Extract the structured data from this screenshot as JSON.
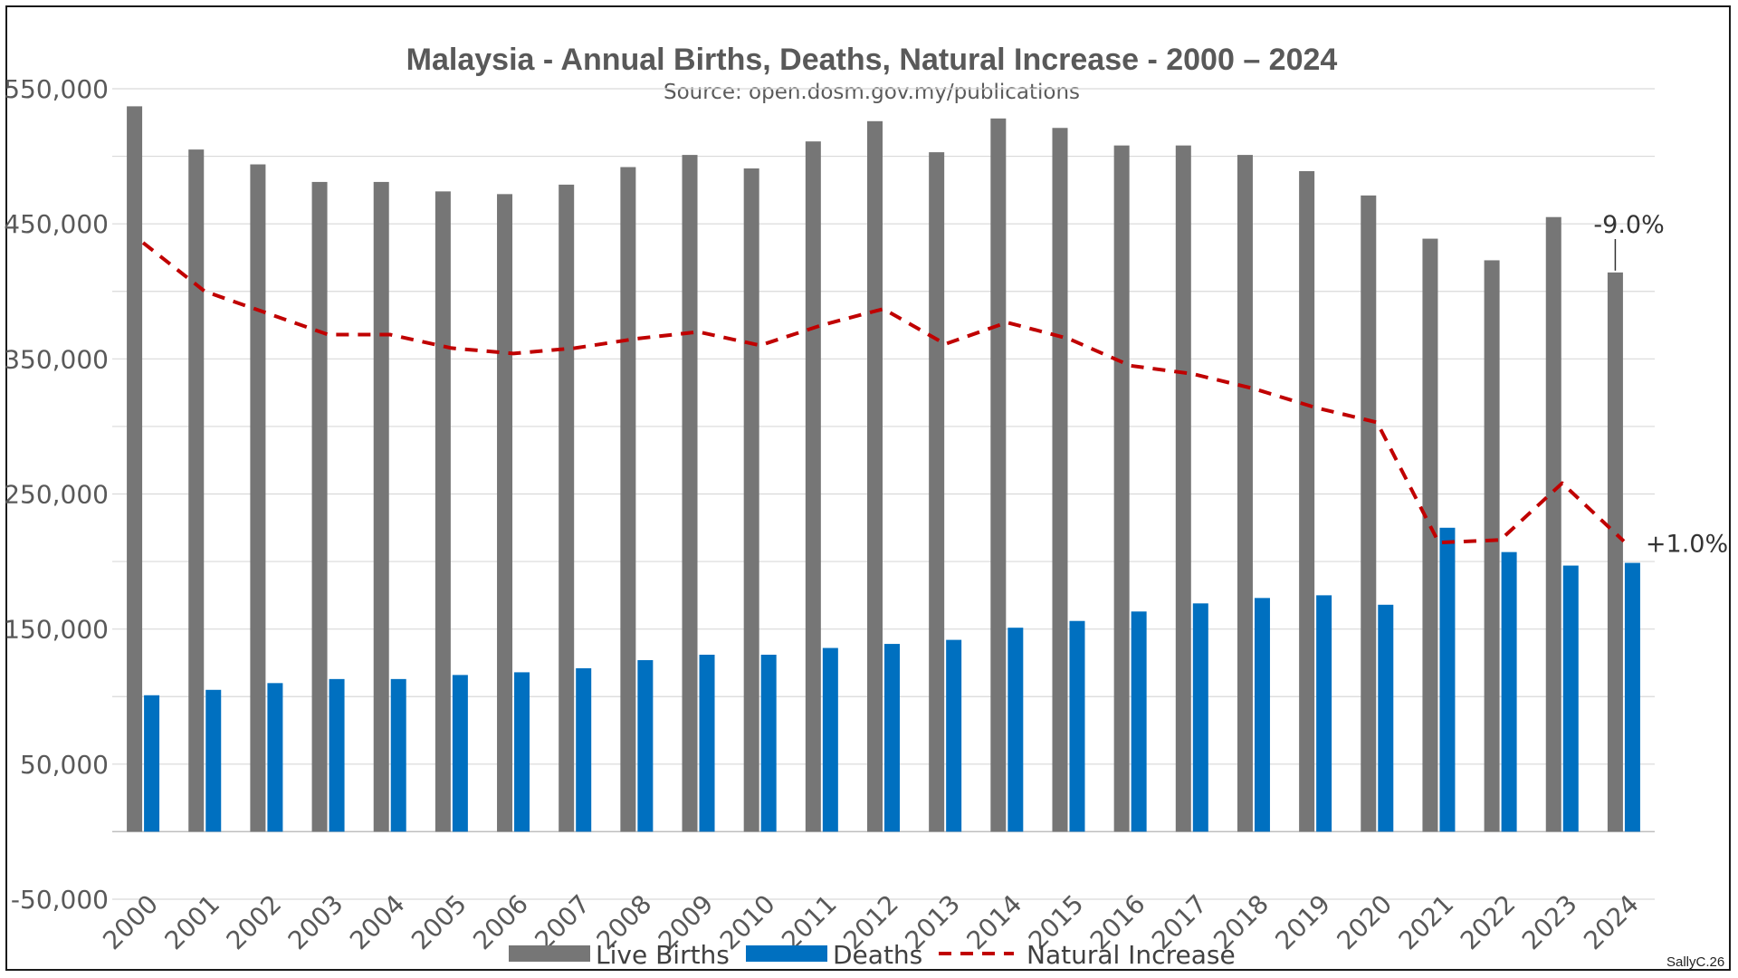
{
  "chart_data": {
    "type": "bar",
    "title": "Malaysia - Annual Births, Deaths, Natural Increase - 2000 – 2024",
    "subtitle": "Source: open.dosm.gov.my/publications",
    "categories": [
      "2000",
      "2001",
      "2002",
      "2003",
      "2004",
      "2005",
      "2006",
      "2007",
      "2008",
      "2009",
      "2010",
      "2011",
      "2012",
      "2013",
      "2014",
      "2015",
      "2016",
      "2017",
      "2018",
      "2019",
      "2020",
      "2021",
      "2022",
      "2023",
      "2024"
    ],
    "series": [
      {
        "name": "Live Births",
        "kind": "bar",
        "color": "#767676",
        "values": [
          537000,
          505000,
          494000,
          481000,
          481000,
          474000,
          472000,
          479000,
          492000,
          501000,
          491000,
          511000,
          526000,
          503000,
          528000,
          521000,
          508000,
          508000,
          501000,
          489000,
          471000,
          439000,
          423000,
          455000,
          414000
        ]
      },
      {
        "name": "Deaths",
        "kind": "bar",
        "color": "#0070c0",
        "values": [
          101000,
          105000,
          110000,
          113000,
          113000,
          116000,
          118000,
          121000,
          127000,
          131000,
          131000,
          136000,
          139000,
          142000,
          151000,
          156000,
          163000,
          169000,
          173000,
          175000,
          168000,
          225000,
          207000,
          197000,
          199000
        ]
      },
      {
        "name": "Natural Increase",
        "kind": "line",
        "style": "dashed",
        "color": "#c00000",
        "values": [
          436000,
          400000,
          384000,
          368000,
          368000,
          358000,
          354000,
          358000,
          365000,
          370000,
          360000,
          375000,
          387000,
          361000,
          377000,
          365000,
          345000,
          339000,
          328000,
          314000,
          303000,
          214000,
          216000,
          258000,
          215000
        ]
      }
    ],
    "y_ticks": [
      "-50,000",
      "50,000",
      "150,000",
      "250,000",
      "350,000",
      "450,000",
      "550,000"
    ],
    "ylim": [
      -50000,
      550000
    ],
    "grid": true,
    "legend_position": "bottom",
    "annotations": [
      {
        "text": "-9.0%",
        "category": "2024",
        "series": "Live Births"
      },
      {
        "text": "+1.0%",
        "category": "2024",
        "series": "Deaths"
      }
    ],
    "credit": "SallyC.26"
  }
}
